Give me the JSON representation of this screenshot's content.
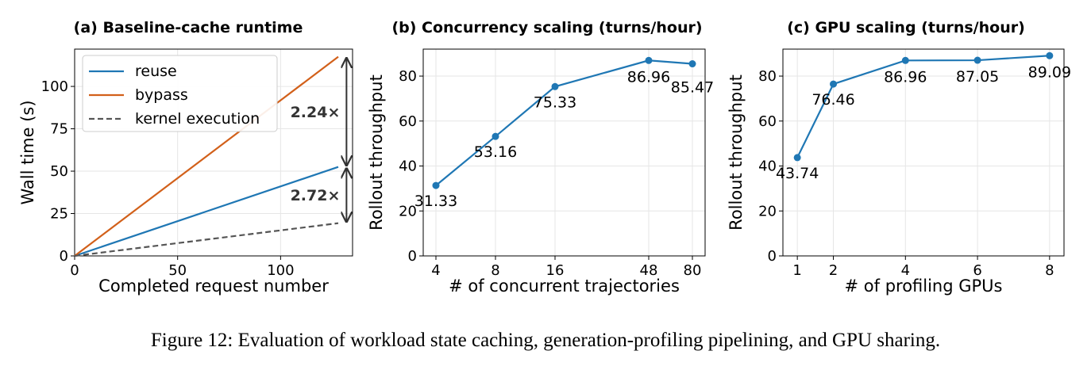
{
  "caption": "Figure 12: Evaluation of workload state caching, generation-profiling pipelining, and GPU sharing.",
  "colors": {
    "blue": "#1f77b4",
    "orange": "#d2601a",
    "gray": "#555555",
    "arrow": "#333333",
    "grid": "#e6e6e6"
  },
  "chart_data": [
    {
      "type": "line",
      "title": "(a) Baseline-cache runtime",
      "xlabel": "Completed request number",
      "ylabel": "Wall time (s)",
      "xlim": [
        0,
        128
      ],
      "ylim": [
        0,
        122
      ],
      "xticks": [
        0,
        50,
        100
      ],
      "yticks": [
        0,
        25,
        50,
        75,
        100
      ],
      "grid": true,
      "legend": "upper-left",
      "series": [
        {
          "name": "reuse",
          "color": "#1f77b4",
          "dash": false,
          "x": [
            0,
            128
          ],
          "y": [
            0,
            52.5
          ]
        },
        {
          "name": "bypass",
          "color": "#d2601a",
          "dash": false,
          "x": [
            0,
            128
          ],
          "y": [
            0,
            117.5
          ]
        },
        {
          "name": "kernel execution",
          "color": "#555555",
          "dash": true,
          "x": [
            0,
            128
          ],
          "y": [
            0,
            19.3
          ]
        }
      ],
      "annotations": [
        {
          "text": "2.24×",
          "x": 132,
          "y_from": 117.5,
          "y_to": 52.5
        },
        {
          "text": "2.72×",
          "x": 132,
          "y_from": 52.5,
          "y_to": 19.3
        }
      ]
    },
    {
      "type": "line",
      "title": "(b) Concurrency scaling (turns/hour)",
      "xlabel": "# of concurrent trajectories",
      "ylabel": "Rollout throughput",
      "ylim": [
        0,
        92
      ],
      "yticks": [
        0,
        20,
        40,
        60,
        80
      ],
      "grid": true,
      "categories": [
        "4",
        "8",
        "16",
        "48",
        "80"
      ],
      "series": [
        {
          "color": "#1f77b4",
          "values": [
            31.33,
            53.16,
            75.33,
            86.96,
            85.47
          ],
          "labels": [
            "31.33",
            "53.16",
            "75.33",
            "86.96",
            "85.47"
          ]
        }
      ]
    },
    {
      "type": "line",
      "title": "(c) GPU scaling (turns/hour)",
      "xlabel": "# of profiling GPUs",
      "ylabel": "Rollout throughput",
      "xlim": [
        0.6,
        8.4
      ],
      "ylim": [
        0,
        92
      ],
      "xticks": [
        1,
        2,
        4,
        6,
        8
      ],
      "yticks": [
        0,
        20,
        40,
        60,
        80
      ],
      "grid": true,
      "series": [
        {
          "color": "#1f77b4",
          "x": [
            1,
            2,
            4,
            6,
            8
          ],
          "values": [
            43.74,
            76.46,
            86.96,
            87.05,
            89.09
          ],
          "labels": [
            "43.74",
            "76.46",
            "86.96",
            "87.05",
            "89.09"
          ]
        }
      ]
    }
  ]
}
